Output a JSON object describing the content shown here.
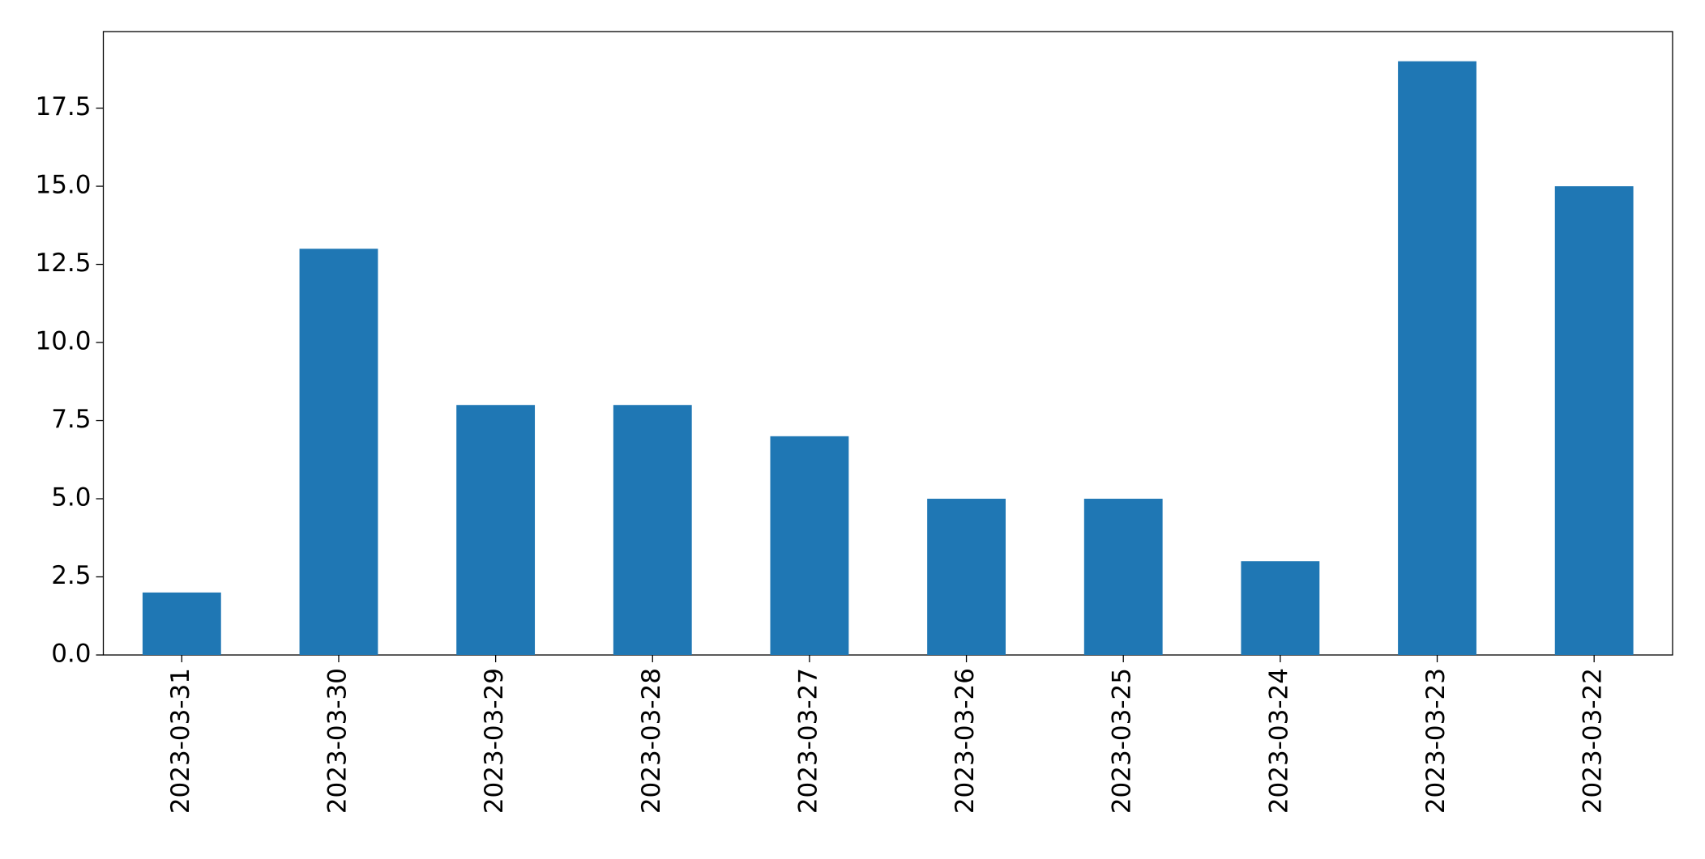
{
  "chart_data": {
    "type": "bar",
    "categories": [
      "2023-03-31",
      "2023-03-30",
      "2023-03-29",
      "2023-03-28",
      "2023-03-27",
      "2023-03-26",
      "2023-03-25",
      "2023-03-24",
      "2023-03-23",
      "2023-03-22"
    ],
    "values": [
      2,
      13,
      8,
      8,
      7,
      5,
      5,
      3,
      19,
      15
    ],
    "color": "#1f77b4",
    "ylim": [
      0,
      19.95
    ],
    "yticks": [
      {
        "value": 0,
        "label": "0.0"
      },
      2.5,
      {
        "value": 5,
        "label": "5.0"
      },
      7.5,
      {
        "value": 10,
        "label": "10.0"
      },
      12.5,
      {
        "value": 15,
        "label": "15.0"
      },
      17.5
    ],
    "grid": false
  }
}
